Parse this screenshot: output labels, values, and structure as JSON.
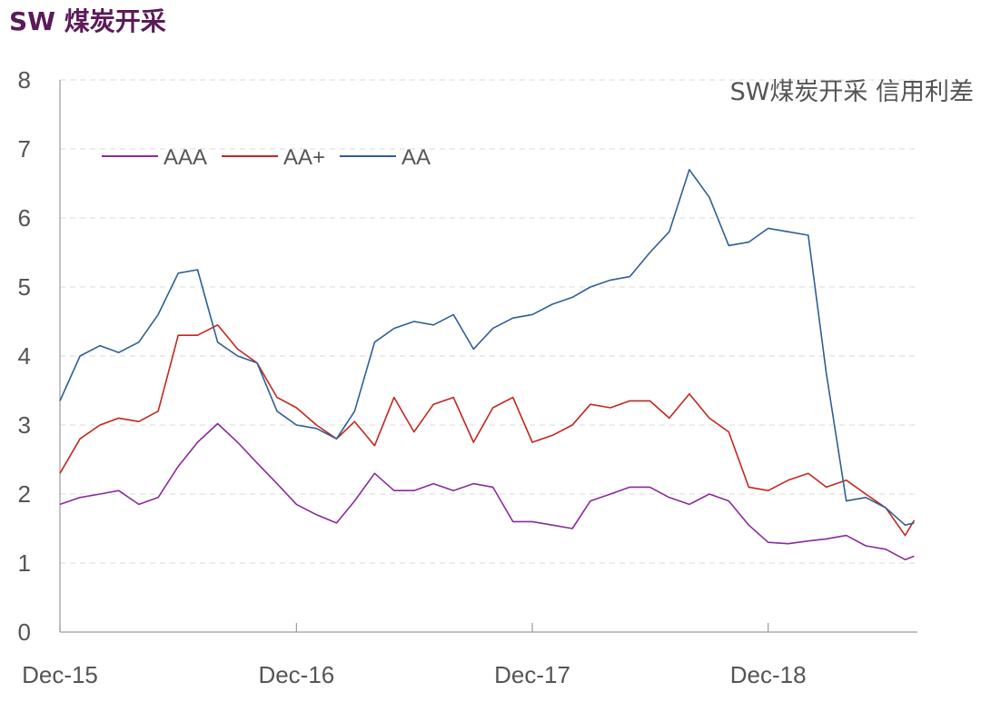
{
  "header": {
    "title": "SW 煤炭开采"
  },
  "chart_data": {
    "type": "line",
    "title": "SW煤炭开采 信用利差",
    "xlabel": "",
    "ylabel": "",
    "ylim": [
      0,
      8
    ],
    "yticks": [
      "0",
      "1",
      "2",
      "3",
      "4",
      "5",
      "6",
      "7",
      "8"
    ],
    "xticks": [
      "Dec-15",
      "Dec-16",
      "Dec-17",
      "Dec-18"
    ],
    "xlim": [
      "2015-12",
      "2019-06"
    ],
    "grid": "horizontal-dashed",
    "legend": "top-left",
    "series": [
      {
        "name": "AAA",
        "color": "#8b2a9c",
        "points": [
          [
            "2015-12-01",
            1.85
          ],
          [
            "2016-01-01",
            1.95
          ],
          [
            "2016-02-01",
            2.0
          ],
          [
            "2016-03-01",
            2.05
          ],
          [
            "2016-04-01",
            1.85
          ],
          [
            "2016-05-01",
            1.95
          ],
          [
            "2016-06-01",
            2.4
          ],
          [
            "2016-07-01",
            2.75
          ],
          [
            "2016-08-01",
            3.02
          ],
          [
            "2016-09-01",
            2.75
          ],
          [
            "2016-10-01",
            2.45
          ],
          [
            "2016-11-01",
            2.15
          ],
          [
            "2016-12-01",
            1.85
          ],
          [
            "2017-01-01",
            1.7
          ],
          [
            "2017-02-01",
            1.58
          ],
          [
            "2017-03-01",
            1.9
          ],
          [
            "2017-04-01",
            2.3
          ],
          [
            "2017-05-01",
            2.05
          ],
          [
            "2017-06-01",
            2.05
          ],
          [
            "2017-07-01",
            2.15
          ],
          [
            "2017-08-01",
            2.05
          ],
          [
            "2017-09-01",
            2.15
          ],
          [
            "2017-10-01",
            2.1
          ],
          [
            "2017-11-01",
            1.6
          ],
          [
            "2017-12-01",
            1.6
          ],
          [
            "2018-01-01",
            1.55
          ],
          [
            "2018-02-01",
            1.5
          ],
          [
            "2018-03-01",
            1.9
          ],
          [
            "2018-04-01",
            2.0
          ],
          [
            "2018-05-01",
            2.1
          ],
          [
            "2018-06-01",
            2.1
          ],
          [
            "2018-07-01",
            1.95
          ],
          [
            "2018-08-01",
            1.85
          ],
          [
            "2018-09-01",
            2.0
          ],
          [
            "2018-10-01",
            1.9
          ],
          [
            "2018-11-01",
            1.55
          ],
          [
            "2018-12-01",
            1.3
          ],
          [
            "2019-01-01",
            1.28
          ],
          [
            "2019-02-01",
            1.32
          ],
          [
            "2019-03-01",
            1.35
          ],
          [
            "2019-04-01",
            1.4
          ],
          [
            "2019-05-01",
            1.25
          ],
          [
            "2019-06-01",
            1.2
          ],
          [
            "2019-07-01",
            1.05
          ],
          [
            "2019-07-15",
            1.1
          ]
        ]
      },
      {
        "name": "AA+",
        "color": "#c3261f",
        "points": [
          [
            "2015-12-01",
            2.3
          ],
          [
            "2016-01-01",
            2.8
          ],
          [
            "2016-02-01",
            3.0
          ],
          [
            "2016-03-01",
            3.1
          ],
          [
            "2016-04-01",
            3.05
          ],
          [
            "2016-05-01",
            3.2
          ],
          [
            "2016-06-01",
            4.3
          ],
          [
            "2016-07-01",
            4.3
          ],
          [
            "2016-08-01",
            4.45
          ],
          [
            "2016-09-01",
            4.1
          ],
          [
            "2016-10-01",
            3.9
          ],
          [
            "2016-11-01",
            3.4
          ],
          [
            "2016-12-01",
            3.25
          ],
          [
            "2017-01-01",
            3.0
          ],
          [
            "2017-02-01",
            2.8
          ],
          [
            "2017-03-01",
            3.05
          ],
          [
            "2017-04-01",
            2.7
          ],
          [
            "2017-05-01",
            3.4
          ],
          [
            "2017-06-01",
            2.9
          ],
          [
            "2017-07-01",
            3.3
          ],
          [
            "2017-08-01",
            3.4
          ],
          [
            "2017-09-01",
            2.75
          ],
          [
            "2017-10-01",
            3.25
          ],
          [
            "2017-11-01",
            3.4
          ],
          [
            "2017-12-01",
            2.75
          ],
          [
            "2018-01-01",
            2.85
          ],
          [
            "2018-02-01",
            3.0
          ],
          [
            "2018-03-01",
            3.3
          ],
          [
            "2018-04-01",
            3.25
          ],
          [
            "2018-05-01",
            3.35
          ],
          [
            "2018-06-01",
            3.35
          ],
          [
            "2018-07-01",
            3.1
          ],
          [
            "2018-08-01",
            3.45
          ],
          [
            "2018-09-01",
            3.1
          ],
          [
            "2018-10-01",
            2.9
          ],
          [
            "2018-11-01",
            2.1
          ],
          [
            "2018-12-01",
            2.05
          ],
          [
            "2019-01-01",
            2.2
          ],
          [
            "2019-02-01",
            2.3
          ],
          [
            "2019-03-01",
            2.1
          ],
          [
            "2019-04-01",
            2.2
          ],
          [
            "2019-05-01",
            2.0
          ],
          [
            "2019-06-01",
            1.8
          ],
          [
            "2019-07-01",
            1.4
          ],
          [
            "2019-07-15",
            1.62
          ]
        ]
      },
      {
        "name": "AA",
        "color": "#2e5f95",
        "points": [
          [
            "2015-12-01",
            3.35
          ],
          [
            "2016-01-01",
            4.0
          ],
          [
            "2016-02-01",
            4.15
          ],
          [
            "2016-03-01",
            4.05
          ],
          [
            "2016-04-01",
            4.2
          ],
          [
            "2016-05-01",
            4.6
          ],
          [
            "2016-06-01",
            5.2
          ],
          [
            "2016-07-01",
            5.25
          ],
          [
            "2016-08-01",
            4.2
          ],
          [
            "2016-09-01",
            4.0
          ],
          [
            "2016-10-01",
            3.9
          ],
          [
            "2016-11-01",
            3.2
          ],
          [
            "2016-12-01",
            3.0
          ],
          [
            "2017-01-01",
            2.95
          ],
          [
            "2017-02-01",
            2.8
          ],
          [
            "2017-03-01",
            3.2
          ],
          [
            "2017-04-01",
            4.2
          ],
          [
            "2017-05-01",
            4.4
          ],
          [
            "2017-06-01",
            4.5
          ],
          [
            "2017-07-01",
            4.45
          ],
          [
            "2017-08-01",
            4.6
          ],
          [
            "2017-09-01",
            4.1
          ],
          [
            "2017-10-01",
            4.4
          ],
          [
            "2017-11-01",
            4.55
          ],
          [
            "2017-12-01",
            4.6
          ],
          [
            "2018-01-01",
            4.75
          ],
          [
            "2018-02-01",
            4.85
          ],
          [
            "2018-03-01",
            5.0
          ],
          [
            "2018-04-01",
            5.1
          ],
          [
            "2018-05-01",
            5.15
          ],
          [
            "2018-06-01",
            5.5
          ],
          [
            "2018-07-01",
            5.8
          ],
          [
            "2018-08-01",
            6.7
          ],
          [
            "2018-09-01",
            6.3
          ],
          [
            "2018-10-01",
            5.6
          ],
          [
            "2018-11-01",
            5.65
          ],
          [
            "2018-12-01",
            5.85
          ],
          [
            "2019-01-01",
            5.8
          ],
          [
            "2019-02-01",
            5.75
          ],
          [
            "2019-03-01",
            3.75
          ],
          [
            "2019-04-01",
            1.9
          ],
          [
            "2019-05-01",
            1.95
          ],
          [
            "2019-06-01",
            1.8
          ],
          [
            "2019-07-01",
            1.55
          ],
          [
            "2019-07-15",
            1.58
          ]
        ]
      }
    ]
  }
}
